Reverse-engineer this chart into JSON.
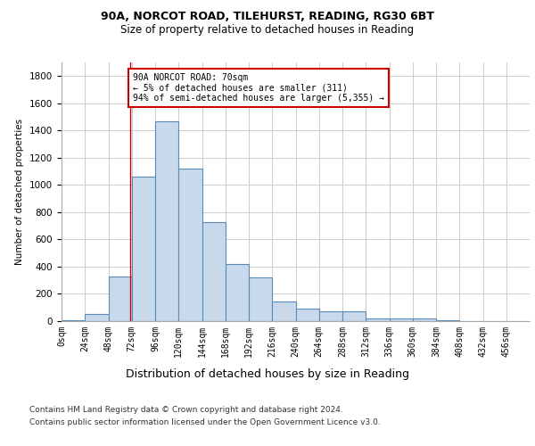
{
  "title1": "90A, NORCOT ROAD, TILEHURST, READING, RG30 6BT",
  "title2": "Size of property relative to detached houses in Reading",
  "xlabel": "Distribution of detached houses by size in Reading",
  "ylabel": "Number of detached properties",
  "annotation_title": "90A NORCOT ROAD: 70sqm",
  "annotation_line1": "← 5% of detached houses are smaller (311)",
  "annotation_line2": "94% of semi-detached houses are larger (5,355) →",
  "footer1": "Contains HM Land Registry data © Crown copyright and database right 2024.",
  "footer2": "Contains public sector information licensed under the Open Government Licence v3.0.",
  "bin_edges": [
    0,
    24,
    48,
    72,
    96,
    120,
    144,
    168,
    192,
    216,
    240,
    264,
    288,
    312,
    336,
    360,
    384,
    408,
    432,
    456,
    480
  ],
  "bar_heights": [
    5,
    50,
    330,
    1060,
    1470,
    1120,
    730,
    420,
    320,
    145,
    95,
    75,
    75,
    20,
    20,
    20,
    5,
    0,
    0,
    0
  ],
  "bar_color": "#c9d9ec",
  "bar_edge_color": "#5a8ab5",
  "vline_x": 70,
  "vline_color": "#cc0000",
  "annotation_box_color": "#cc0000",
  "ylim": [
    0,
    1900
  ],
  "yticks": [
    0,
    200,
    400,
    600,
    800,
    1000,
    1200,
    1400,
    1600,
    1800
  ],
  "background_color": "#ffffff",
  "grid_color": "#cccccc",
  "title1_fontsize": 9,
  "title2_fontsize": 8.5,
  "xlabel_fontsize": 9,
  "ylabel_fontsize": 7.5,
  "tick_fontsize": 7,
  "footer_fontsize": 6.5
}
